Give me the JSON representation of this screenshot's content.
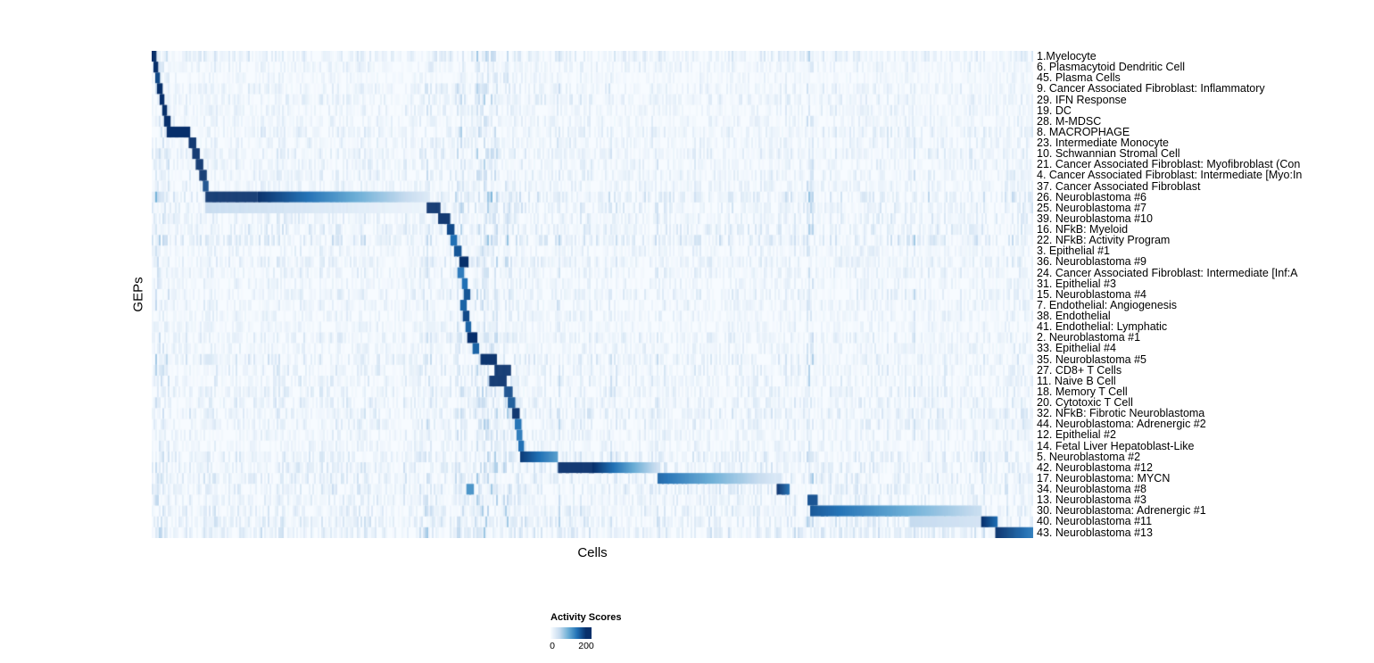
{
  "chart_data": {
    "type": "heatmap",
    "title": "",
    "xlabel": "Cells",
    "ylabel": "GEPs",
    "legend_position": "bottom",
    "colorbar": {
      "title": "Activity Scores",
      "min": 0,
      "max": 200,
      "tick_labels": [
        "0",
        "200"
      ],
      "palette": [
        "#f7fbff",
        "#c6dbef",
        "#6baed6",
        "#2171b5",
        "#08306b"
      ]
    },
    "seed": 7,
    "noise_scale": 55,
    "stripes": [
      [
        0.0,
        0.02,
        1.8
      ],
      [
        0.31,
        0.008,
        1.7
      ],
      [
        0.345,
        0.01,
        1.8
      ],
      [
        0.37,
        0.022,
        2.0
      ],
      [
        0.4,
        0.01,
        1.8
      ],
      [
        0.46,
        0.006,
        1.6
      ],
      [
        0.52,
        0.006,
        1.5
      ],
      [
        0.574,
        0.006,
        1.6
      ],
      [
        0.744,
        0.006,
        1.7
      ],
      [
        0.86,
        0.005,
        1.5
      ],
      [
        0.94,
        0.005,
        1.6
      ]
    ],
    "rows": [
      {
        "label": "1.Myelocyte",
        "noise": 0.55,
        "segments": [
          [
            0.0,
            0.005,
            200,
            200
          ]
        ]
      },
      {
        "label": "6. Plasmacytoid Dendritic Cell",
        "noise": 0.4,
        "segments": [
          [
            0.002,
            0.007,
            200,
            200
          ]
        ]
      },
      {
        "label": "45. Plasma Cells",
        "noise": 0.3,
        "segments": [
          [
            0.004,
            0.009,
            180,
            180
          ]
        ]
      },
      {
        "label": "9. Cancer Associated Fibroblast: Inflammatory",
        "noise": 0.45,
        "segments": [
          [
            0.006,
            0.012,
            200,
            200
          ]
        ]
      },
      {
        "label": "29. IFN Response",
        "noise": 0.5,
        "segments": [
          [
            0.009,
            0.014,
            200,
            200
          ]
        ]
      },
      {
        "label": "19. DC",
        "noise": 0.4,
        "segments": [
          [
            0.012,
            0.017,
            200,
            200
          ]
        ]
      },
      {
        "label": "28. M-MDSC",
        "noise": 0.4,
        "segments": [
          [
            0.014,
            0.021,
            200,
            200
          ]
        ]
      },
      {
        "label": "8. MACROPHAGE",
        "noise": 0.5,
        "segments": [
          [
            0.017,
            0.043,
            200,
            200
          ]
        ]
      },
      {
        "label": "23. Intermediate Monocyte",
        "noise": 0.45,
        "segments": [
          [
            0.042,
            0.05,
            200,
            200
          ]
        ]
      },
      {
        "label": "10. Schwannian Stromal Cell",
        "noise": 0.5,
        "segments": [
          [
            0.046,
            0.054,
            200,
            200
          ]
        ]
      },
      {
        "label": "21. Cancer Associated Fibroblast: Myofibroblast (Con",
        "noise": 0.45,
        "segments": [
          [
            0.05,
            0.058,
            200,
            200
          ]
        ]
      },
      {
        "label": "4. Cancer Associated Fibroblast: Intermediate [Myo:In",
        "noise": 0.45,
        "segments": [
          [
            0.054,
            0.062,
            200,
            200
          ]
        ]
      },
      {
        "label": "37. Cancer Associated Fibroblast",
        "noise": 0.4,
        "segments": [
          [
            0.058,
            0.064,
            180,
            180
          ]
        ]
      },
      {
        "label": "26. Neuroblastoma #6",
        "noise": 0.75,
        "segments": [
          [
            0.061,
            0.12,
            200,
            200
          ],
          [
            0.12,
            0.315,
            200,
            25
          ]
        ]
      },
      {
        "label": "25. Neuroblastoma #7",
        "noise": 0.6,
        "segments": [
          [
            0.061,
            0.315,
            50,
            10
          ],
          [
            0.312,
            0.327,
            200,
            200
          ]
        ]
      },
      {
        "label": "39. Neuroblastoma #10",
        "noise": 0.5,
        "segments": [
          [
            0.325,
            0.338,
            200,
            200
          ]
        ]
      },
      {
        "label": "16. NFkB: Myeloid",
        "noise": 0.6,
        "segments": [
          [
            0.335,
            0.343,
            180,
            180
          ]
        ]
      },
      {
        "label": "22. NFkB: Activity Program",
        "noise": 0.7,
        "segments": [
          [
            0.339,
            0.346,
            150,
            150
          ]
        ]
      },
      {
        "label": "3. Epithelial #1",
        "noise": 0.4,
        "segments": [
          [
            0.343,
            0.351,
            170,
            170
          ]
        ]
      },
      {
        "label": "36. Neuroblastoma #9",
        "noise": 0.5,
        "segments": [
          [
            0.349,
            0.359,
            200,
            200
          ]
        ]
      },
      {
        "label": "24. Cancer Associated Fibroblast: Intermediate [Inf:A",
        "noise": 0.45,
        "segments": [
          [
            0.347,
            0.354,
            140,
            140
          ]
        ]
      },
      {
        "label": "31. Epithelial #3",
        "noise": 0.35,
        "segments": [
          [
            0.352,
            0.358,
            150,
            150
          ]
        ]
      },
      {
        "label": "15. Neuroblastoma #4",
        "noise": 0.5,
        "segments": [
          [
            0.354,
            0.361,
            170,
            170
          ]
        ]
      },
      {
        "label": "7. Endothelial: Angiogenesis",
        "noise": 0.4,
        "segments": [
          [
            0.35,
            0.357,
            160,
            160
          ]
        ]
      },
      {
        "label": "38. Endothelial",
        "noise": 0.4,
        "segments": [
          [
            0.353,
            0.36,
            180,
            180
          ]
        ]
      },
      {
        "label": "41. Endothelial: Lymphatic",
        "noise": 0.35,
        "segments": [
          [
            0.356,
            0.362,
            160,
            160
          ]
        ]
      },
      {
        "label": "2. Neuroblastoma #1",
        "noise": 0.5,
        "segments": [
          [
            0.358,
            0.369,
            200,
            200
          ]
        ]
      },
      {
        "label": "33. Epithelial #4",
        "noise": 0.4,
        "segments": [
          [
            0.364,
            0.371,
            160,
            160
          ]
        ]
      },
      {
        "label": "35. Neuroblastoma #5",
        "noise": 0.6,
        "segments": [
          [
            0.373,
            0.391,
            200,
            200
          ]
        ]
      },
      {
        "label": "27. CD8+ T Cells",
        "noise": 0.5,
        "segments": [
          [
            0.389,
            0.407,
            200,
            200
          ]
        ]
      },
      {
        "label": "11. Naive B Cell",
        "noise": 0.5,
        "segments": [
          [
            0.383,
            0.402,
            200,
            200
          ]
        ]
      },
      {
        "label": "18. Memory T Cell",
        "noise": 0.5,
        "segments": [
          [
            0.4,
            0.409,
            180,
            180
          ]
        ]
      },
      {
        "label": "20. Cytotoxic T Cell",
        "noise": 0.5,
        "segments": [
          [
            0.404,
            0.412,
            170,
            170
          ]
        ]
      },
      {
        "label": "32. NFkB: Fibrotic Neuroblastoma",
        "noise": 0.6,
        "segments": [
          [
            0.409,
            0.417,
            200,
            200
          ]
        ]
      },
      {
        "label": "44. Neuroblastoma: Adrenergic #2",
        "noise": 0.5,
        "segments": [
          [
            0.412,
            0.419,
            150,
            150
          ]
        ]
      },
      {
        "label": "12. Epithelial #2",
        "noise": 0.4,
        "segments": [
          [
            0.414,
            0.42,
            140,
            140
          ]
        ]
      },
      {
        "label": "14. Fetal Liver Hepatoblast-Like",
        "noise": 0.4,
        "segments": [
          [
            0.416,
            0.422,
            150,
            150
          ]
        ]
      },
      {
        "label": "5. Neuroblastoma #2",
        "noise": 0.6,
        "segments": [
          [
            0.418,
            0.461,
            190,
            110
          ]
        ]
      },
      {
        "label": "42. Neuroblastoma #12",
        "noise": 0.6,
        "segments": [
          [
            0.461,
            0.5,
            200,
            200
          ],
          [
            0.5,
            0.573,
            200,
            45
          ]
        ]
      },
      {
        "label": "17. Neuroblastoma: MYCN",
        "noise": 0.6,
        "segments": [
          [
            0.574,
            0.709,
            160,
            30
          ]
        ]
      },
      {
        "label": "34. Neuroblastoma #8",
        "noise": 0.6,
        "segments": [
          [
            0.357,
            0.365,
            120,
            120
          ],
          [
            0.709,
            0.723,
            200,
            150
          ]
        ]
      },
      {
        "label": "13. Neuroblastoma #3",
        "noise": 0.5,
        "segments": [
          [
            0.744,
            0.755,
            175,
            175
          ]
        ]
      },
      {
        "label": "30. Neuroblastoma: Adrenergic #1",
        "noise": 0.6,
        "segments": [
          [
            0.747,
            0.941,
            170,
            45
          ]
        ]
      },
      {
        "label": "40. Neuroblastoma #11",
        "noise": 0.6,
        "segments": [
          [
            0.86,
            0.941,
            50,
            35
          ],
          [
            0.941,
            0.959,
            200,
            150
          ]
        ]
      },
      {
        "label": "43. Neuroblastoma #13",
        "noise": 0.7,
        "segments": [
          [
            0.957,
            1.0,
            200,
            140
          ]
        ]
      }
    ]
  }
}
